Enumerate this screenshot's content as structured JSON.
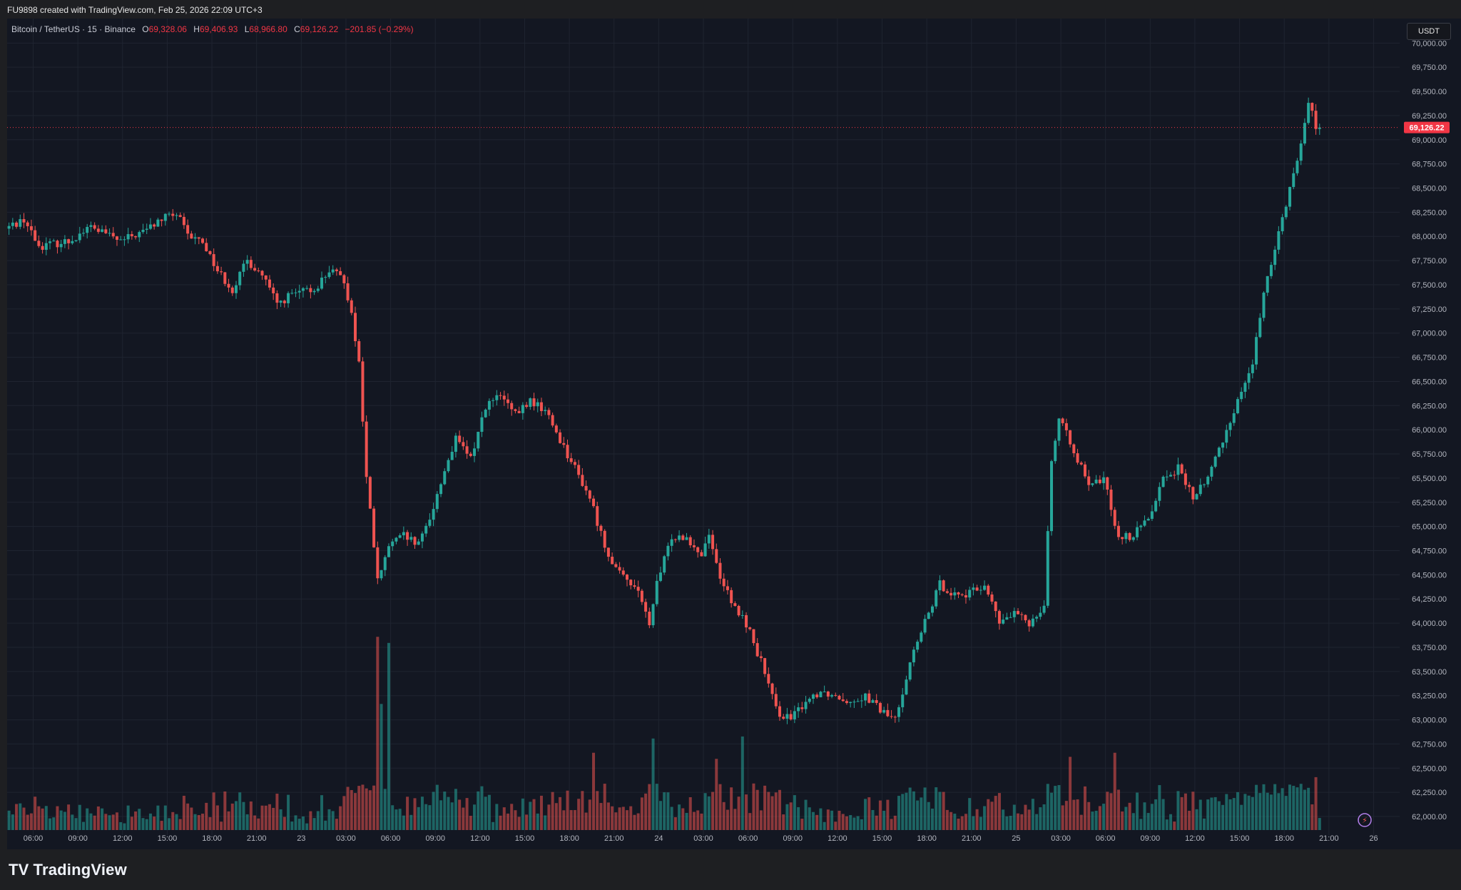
{
  "header": {
    "credit": "FU9898 created with TradingView.com, Feb 25, 2026 22:09 UTC+3"
  },
  "legend": {
    "symbol": "Bitcoin / TetherUS · 15 · Binance",
    "o_label": "O",
    "o_value": "69,328.06",
    "h_label": "H",
    "h_value": "69,406.93",
    "l_label": "L",
    "l_value": "68,966.80",
    "c_label": "C",
    "c_value": "69,126.22",
    "change": "−201.85 (−0.29%)"
  },
  "currency": "USDT",
  "brand": {
    "logo": "TV",
    "name": "TradingView"
  },
  "colors": {
    "up": "#26a69a",
    "down": "#ef5350",
    "background": "#131722",
    "grid": "#1f2430",
    "last_price": "#f23645"
  },
  "chart_data": {
    "type": "candlestick",
    "y_axis_labels": [
      "70,000.00",
      "69,750.00",
      "69,500.00",
      "69,250.00",
      "69,000.00",
      "68,750.00",
      "68,500.00",
      "68,250.00",
      "68,000.00",
      "67,750.00",
      "67,500.00",
      "67,250.00",
      "67,000.00",
      "66,750.00",
      "66,500.00",
      "66,250.00",
      "66,000.00",
      "65,750.00",
      "65,500.00",
      "65,250.00",
      "65,000.00",
      "64,750.00",
      "64,500.00",
      "64,250.00",
      "64,000.00",
      "63,750.00",
      "63,500.00",
      "63,250.00",
      "63,000.00",
      "62,750.00",
      "62,500.00",
      "62,250.00",
      "62,000.00"
    ],
    "y_range": [
      61860,
      70150
    ],
    "x_tick_labels": [
      "06:00",
      "09:00",
      "12:00",
      "15:00",
      "18:00",
      "21:00",
      "23",
      "03:00",
      "06:00",
      "09:00",
      "12:00",
      "15:00",
      "18:00",
      "21:00",
      "24",
      "03:00",
      "06:00",
      "09:00",
      "12:00",
      "15:00",
      "18:00",
      "21:00",
      "25",
      "03:00",
      "06:00",
      "09:00",
      "12:00",
      "15:00",
      "18:00",
      "21:00",
      "26"
    ],
    "x_tick_hours": [
      6,
      9,
      12,
      15,
      18,
      21,
      24,
      27,
      30,
      33,
      36,
      39,
      42,
      45,
      48,
      51,
      54,
      57,
      60,
      63,
      66,
      69,
      72,
      75,
      78,
      81,
      84,
      87,
      90,
      93,
      96
    ],
    "time_range_hours": [
      4.25,
      97.75
    ],
    "last_price": {
      "value": 69126.22,
      "label": "69,126.22"
    },
    "price_path": [
      [
        4.25,
        68080
      ],
      [
        5.5,
        68180
      ],
      [
        6.5,
        67900
      ],
      [
        8.5,
        67950
      ],
      [
        10,
        68100
      ],
      [
        12,
        67950
      ],
      [
        13.5,
        68050
      ],
      [
        15,
        68200
      ],
      [
        15.8,
        68230
      ],
      [
        16.5,
        68000
      ],
      [
        17.5,
        67950
      ],
      [
        18.5,
        67650
      ],
      [
        19.5,
        67450
      ],
      [
        20.5,
        67750
      ],
      [
        21.5,
        67600
      ],
      [
        22.5,
        67300
      ],
      [
        23.5,
        67400
      ],
      [
        25,
        67450
      ],
      [
        26,
        67650
      ],
      [
        27,
        67550
      ],
      [
        27.5,
        67200
      ],
      [
        28,
        66700
      ],
      [
        28.5,
        65500
      ],
      [
        29,
        64800
      ],
      [
        29.3,
        64400
      ],
      [
        30,
        64800
      ],
      [
        31,
        64900
      ],
      [
        32,
        64800
      ],
      [
        33,
        65200
      ],
      [
        34,
        65700
      ],
      [
        34.5,
        65900
      ],
      [
        35.5,
        65700
      ],
      [
        36.5,
        66250
      ],
      [
        37.5,
        66350
      ],
      [
        38.5,
        66150
      ],
      [
        39.5,
        66300
      ],
      [
        40.5,
        66200
      ],
      [
        41.5,
        65900
      ],
      [
        42.5,
        65600
      ],
      [
        43.5,
        65300
      ],
      [
        44.5,
        64800
      ],
      [
        45.5,
        64500
      ],
      [
        46.5,
        64400
      ],
      [
        47.5,
        64000
      ],
      [
        48,
        64400
      ],
      [
        49,
        64900
      ],
      [
        50,
        64900
      ],
      [
        51,
        64700
      ],
      [
        51.5,
        64950
      ],
      [
        52,
        64600
      ],
      [
        53,
        64200
      ],
      [
        54,
        64000
      ],
      [
        55,
        63600
      ],
      [
        56,
        63100
      ],
      [
        57,
        63000
      ],
      [
        58,
        63200
      ],
      [
        59,
        63300
      ],
      [
        60,
        63250
      ],
      [
        61,
        63200
      ],
      [
        62,
        63250
      ],
      [
        63,
        63100
      ],
      [
        64,
        63000
      ],
      [
        65,
        63600
      ],
      [
        66,
        64000
      ],
      [
        67,
        64400
      ],
      [
        68,
        64300
      ],
      [
        69,
        64300
      ],
      [
        70,
        64400
      ],
      [
        71,
        64000
      ],
      [
        72,
        64100
      ],
      [
        73,
        64000
      ],
      [
        74,
        64200
      ],
      [
        74.5,
        65700
      ],
      [
        75,
        66100
      ],
      [
        76,
        65800
      ],
      [
        77,
        65400
      ],
      [
        78,
        65500
      ],
      [
        79,
        64900
      ],
      [
        80,
        64900
      ],
      [
        81,
        65100
      ],
      [
        82,
        65500
      ],
      [
        83,
        65600
      ],
      [
        84,
        65300
      ],
      [
        85,
        65500
      ],
      [
        86,
        65900
      ],
      [
        87,
        66300
      ],
      [
        88,
        66700
      ],
      [
        89,
        67600
      ],
      [
        90,
        68200
      ],
      [
        91,
        68800
      ],
      [
        91.8,
        69400
      ],
      [
        92.3,
        69126
      ]
    ],
    "volume_spikes": [
      [
        29,
        0.95
      ],
      [
        29.3,
        0.62
      ],
      [
        29.7,
        0.92
      ],
      [
        43.5,
        0.38
      ],
      [
        47.5,
        0.45
      ],
      [
        51.7,
        0.35
      ],
      [
        53.5,
        0.46
      ],
      [
        75.5,
        0.36
      ],
      [
        78.5,
        0.38
      ],
      [
        92,
        0.26
      ]
    ]
  }
}
